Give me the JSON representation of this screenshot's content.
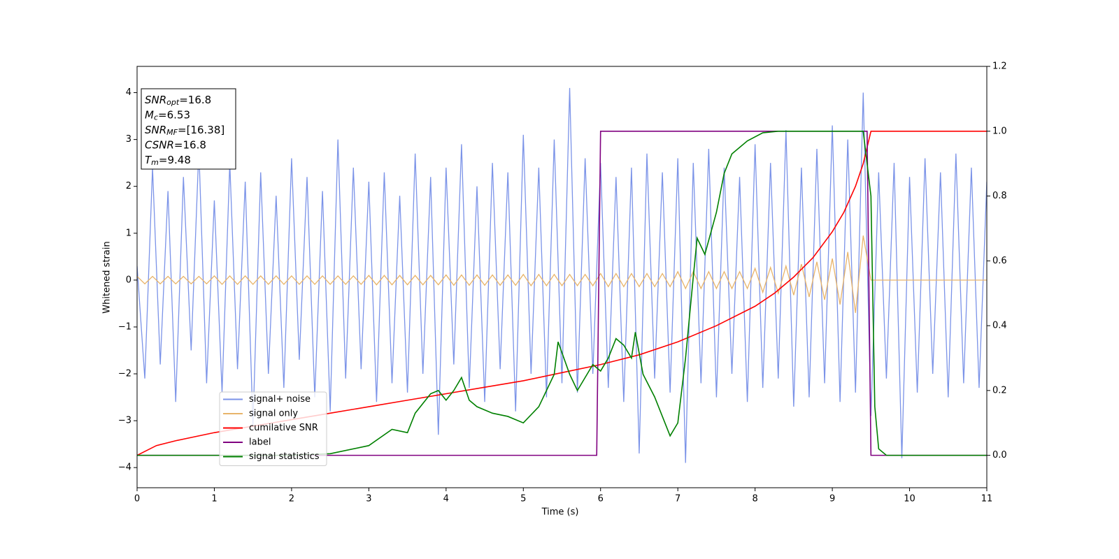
{
  "chart_data": {
    "type": "line",
    "xlabel": "Time (s)",
    "ylabel": "Whitened strain",
    "xlim": [
      0,
      11
    ],
    "ylim": [
      -4.43,
      4.56
    ],
    "y2lim": [
      -0.1,
      1.2
    ],
    "xticks": [
      0,
      1,
      2,
      3,
      4,
      5,
      6,
      7,
      8,
      9,
      10,
      11
    ],
    "yticks": [
      {
        "value": -4,
        "label": "−4"
      },
      {
        "value": -3,
        "label": "−3"
      },
      {
        "value": -2,
        "label": "−2"
      },
      {
        "value": -1,
        "label": "−1"
      },
      0,
      1,
      2,
      3,
      4
    ],
    "y2ticks": [
      {
        "value": 0,
        "label": "0.0"
      },
      {
        "value": 0.2,
        "label": "0.2"
      },
      {
        "value": 0.4,
        "label": "0.4"
      },
      {
        "value": 0.6,
        "label": "0.6"
      },
      {
        "value": 0.8,
        "label": "0.8"
      },
      {
        "value": 1,
        "label": "1.0"
      },
      {
        "value": 1.2,
        "label": "1.2"
      }
    ],
    "legend": "lower left",
    "annotation": [
      {
        "main": "SNR",
        "sub": "opt",
        "rest": "=16.8"
      },
      {
        "main": "M",
        "sub": "c",
        "rest": "=6.53"
      },
      {
        "main": "SNR",
        "sub": "MF",
        "rest": "=[16.38]"
      },
      {
        "main": "CSNR",
        "sub": "",
        "rest": "=16.8"
      },
      {
        "main": "T",
        "sub": "m",
        "rest": "=9.48"
      }
    ],
    "x": [
      0,
      0.1,
      0.2,
      0.3,
      0.4,
      0.5,
      0.6,
      0.7,
      0.8,
      0.9,
      1,
      1.1,
      1.2,
      1.3,
      1.4,
      1.5,
      1.6,
      1.7,
      1.8,
      1.9,
      2,
      2.1,
      2.2,
      2.3,
      2.4,
      2.5,
      2.6,
      2.7,
      2.8,
      2.9,
      3,
      3.1,
      3.2,
      3.3,
      3.4,
      3.5,
      3.6,
      3.7,
      3.8,
      3.9,
      4,
      4.1,
      4.2,
      4.3,
      4.4,
      4.5,
      4.6,
      4.7,
      4.8,
      4.9,
      5,
      5.1,
      5.2,
      5.3,
      5.4,
      5.5,
      5.6,
      5.7,
      5.8,
      5.9,
      6,
      6.1,
      6.2,
      6.3,
      6.4,
      6.5,
      6.6,
      6.7,
      6.8,
      6.9,
      7,
      7.1,
      7.2,
      7.3,
      7.4,
      7.5,
      7.6,
      7.7,
      7.8,
      7.9,
      8,
      8.1,
      8.2,
      8.3,
      8.4,
      8.5,
      8.6,
      8.7,
      8.8,
      8.9,
      9,
      9.1,
      9.2,
      9.3,
      9.4,
      9.5,
      9.6,
      9.7,
      9.8,
      9.9,
      10,
      10.1,
      10.2,
      10.3,
      10.4,
      10.5,
      10.6,
      10.7,
      10.8,
      10.9,
      11
    ],
    "series": [
      {
        "name": "signal+ noise",
        "color": "#7b93e8",
        "values": [
          0.3,
          -2.1,
          2.4,
          -1.8,
          1.9,
          -2.6,
          2.2,
          -1.5,
          2.8,
          -2.2,
          1.7,
          -2.4,
          2.5,
          -1.9,
          2.1,
          -3.1,
          2.3,
          -2.0,
          1.8,
          -2.3,
          2.6,
          -1.7,
          2.2,
          -2.5,
          1.9,
          -2.8,
          3.0,
          -2.1,
          2.4,
          -1.9,
          2.1,
          -2.6,
          2.3,
          -2.2,
          1.8,
          -2.4,
          2.7,
          -2.0,
          2.2,
          -3.3,
          2.4,
          -1.8,
          2.9,
          -2.3,
          2.0,
          -2.6,
          2.5,
          -1.9,
          2.3,
          -2.8,
          3.1,
          -2.0,
          2.4,
          -2.5,
          3.0,
          -2.2,
          4.1,
          -2.4,
          2.6,
          -2.0,
          2.5,
          -2.3,
          2.2,
          -2.6,
          2.4,
          -3.7,
          2.7,
          -2.1,
          2.3,
          -2.4,
          2.6,
          -3.9,
          2.5,
          -2.2,
          2.8,
          -2.5,
          2.4,
          -2.0,
          2.2,
          -2.6,
          2.9,
          -2.3,
          2.5,
          -2.1,
          3.2,
          -2.7,
          2.4,
          -2.5,
          2.8,
          -2.2,
          3.3,
          -2.6,
          3.0,
          -2.4,
          4.0,
          -2.9,
          2.3,
          -2.1,
          2.5,
          -3.8,
          2.2,
          -2.4,
          2.6,
          -2.0,
          2.3,
          -2.5,
          2.7,
          -2.2,
          2.4,
          -2.3,
          2.1
        ]
      },
      {
        "name": "signal only",
        "color": "#e8b46a",
        "values": [
          0.08,
          -0.08,
          0.08,
          -0.08,
          0.08,
          -0.08,
          0.08,
          -0.08,
          0.08,
          -0.08,
          0.09,
          -0.09,
          0.09,
          -0.09,
          0.09,
          -0.09,
          0.09,
          -0.09,
          0.09,
          -0.09,
          0.09,
          -0.09,
          0.09,
          -0.09,
          0.09,
          -0.09,
          0.09,
          -0.09,
          0.09,
          -0.09,
          0.1,
          -0.1,
          0.1,
          -0.1,
          0.1,
          -0.1,
          0.1,
          -0.1,
          0.1,
          -0.1,
          0.11,
          -0.11,
          0.11,
          -0.11,
          0.11,
          -0.11,
          0.11,
          -0.11,
          0.11,
          -0.11,
          0.12,
          -0.12,
          0.12,
          -0.12,
          0.12,
          -0.12,
          0.12,
          -0.12,
          0.12,
          -0.12,
          0.14,
          -0.14,
          0.14,
          -0.14,
          0.14,
          -0.14,
          0.14,
          -0.14,
          0.14,
          -0.14,
          0.18,
          -0.18,
          0.18,
          -0.18,
          0.18,
          -0.18,
          0.18,
          -0.18,
          0.18,
          -0.18,
          0.25,
          -0.26,
          0.27,
          -0.28,
          0.3,
          -0.32,
          0.34,
          -0.36,
          0.39,
          -0.42,
          0.46,
          -0.52,
          0.6,
          -0.7,
          0.95,
          0,
          0,
          0,
          0,
          0,
          0,
          0,
          0,
          0,
          0,
          0,
          0,
          0,
          0,
          0,
          0
        ]
      },
      {
        "name": "cumilative SNR",
        "color": "#ff0000",
        "axis": "y2",
        "x": [
          0,
          0.25,
          0.5,
          1,
          1.5,
          2,
          2.5,
          3,
          3.5,
          4,
          4.5,
          5,
          5.5,
          6,
          6.5,
          7,
          7.5,
          8,
          8.25,
          8.5,
          8.75,
          9,
          9.15,
          9.3,
          9.4,
          9.48,
          9.5,
          11
        ],
        "values": [
          0,
          0.03,
          0.045,
          0.07,
          0.09,
          0.11,
          0.13,
          0.15,
          0.17,
          0.19,
          0.21,
          0.23,
          0.255,
          0.28,
          0.31,
          0.35,
          0.4,
          0.46,
          0.5,
          0.55,
          0.61,
          0.69,
          0.75,
          0.83,
          0.9,
          0.98,
          1,
          1
        ]
      },
      {
        "name": "label",
        "color": "#800080",
        "axis": "y2",
        "x": [
          0,
          5.95,
          6.0,
          9.45,
          9.5,
          11
        ],
        "values": [
          0,
          0,
          1,
          1,
          0,
          0
        ]
      },
      {
        "name": "signal statistics",
        "color": "#008000",
        "axis": "y2",
        "x": [
          0,
          2,
          2.5,
          3,
          3.3,
          3.5,
          3.6,
          3.8,
          3.9,
          4.0,
          4.1,
          4.2,
          4.3,
          4.4,
          4.6,
          4.8,
          5.0,
          5.2,
          5.4,
          5.45,
          5.6,
          5.7,
          5.9,
          6.0,
          6.1,
          6.2,
          6.3,
          6.4,
          6.45,
          6.55,
          6.7,
          6.8,
          6.9,
          7.0,
          7.1,
          7.2,
          7.25,
          7.35,
          7.5,
          7.6,
          7.7,
          7.9,
          8.1,
          8.3,
          9.3,
          9.4,
          9.5,
          9.55,
          9.6,
          9.7,
          11
        ],
        "values": [
          0,
          0,
          0.005,
          0.03,
          0.08,
          0.07,
          0.13,
          0.19,
          0.2,
          0.17,
          0.2,
          0.24,
          0.17,
          0.15,
          0.13,
          0.12,
          0.1,
          0.15,
          0.25,
          0.35,
          0.25,
          0.2,
          0.28,
          0.26,
          0.3,
          0.36,
          0.34,
          0.3,
          0.38,
          0.25,
          0.18,
          0.12,
          0.06,
          0.1,
          0.3,
          0.55,
          0.67,
          0.62,
          0.75,
          0.87,
          0.93,
          0.97,
          0.995,
          1,
          1,
          1,
          0.8,
          0.15,
          0.02,
          0,
          0
        ]
      }
    ]
  }
}
